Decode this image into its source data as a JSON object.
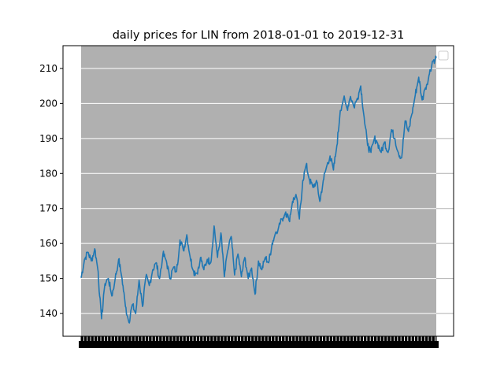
{
  "chart_data": {
    "type": "line",
    "title": "daily prices for LIN from 2018-01-01 to 2019-12-31",
    "xlabel": "",
    "ylabel": "",
    "x_range": [
      "2018-01-01",
      "2019-12-31"
    ],
    "ylim": [
      133.5,
      216.5
    ],
    "y_ticks": [
      140,
      150,
      160,
      170,
      180,
      190,
      200,
      210
    ],
    "grid": {
      "y": true,
      "x": false
    },
    "legend": {
      "placement": "upper-right",
      "entries": []
    },
    "colors": {
      "line": "#1f77b4",
      "plot_background": "#b0b0b0",
      "grid": "#ffffff"
    },
    "series": [
      {
        "keypoints": [
          [
            "2018-01-01",
            150.2
          ],
          [
            "2018-01-08",
            155.5
          ],
          [
            "2018-01-15",
            157.5
          ],
          [
            "2018-01-22",
            155.0
          ],
          [
            "2018-01-29",
            158.5
          ],
          [
            "2018-02-05",
            152.0
          ],
          [
            "2018-02-08",
            145.0
          ],
          [
            "2018-02-12",
            138.5
          ],
          [
            "2018-02-19",
            148.5
          ],
          [
            "2018-02-26",
            150.0
          ],
          [
            "2018-03-05",
            145.0
          ],
          [
            "2018-03-12",
            150.0
          ],
          [
            "2018-03-19",
            155.5
          ],
          [
            "2018-03-26",
            150.0
          ],
          [
            "2018-04-02",
            142.0
          ],
          [
            "2018-04-09",
            137.5
          ],
          [
            "2018-04-16",
            142.5
          ],
          [
            "2018-04-23",
            140.0
          ],
          [
            "2018-04-30",
            149.5
          ],
          [
            "2018-05-07",
            142.0
          ],
          [
            "2018-05-14",
            150.5
          ],
          [
            "2018-05-21",
            148.0
          ],
          [
            "2018-05-28",
            152.5
          ],
          [
            "2018-06-04",
            154.5
          ],
          [
            "2018-06-11",
            150.0
          ],
          [
            "2018-06-18",
            157.0
          ],
          [
            "2018-06-25",
            155.0
          ],
          [
            "2018-07-02",
            150.0
          ],
          [
            "2018-07-09",
            153.0
          ],
          [
            "2018-07-16",
            152.0
          ],
          [
            "2018-07-23",
            161.0
          ],
          [
            "2018-07-30",
            158.0
          ],
          [
            "2018-08-06",
            162.5
          ],
          [
            "2018-08-13",
            156.0
          ],
          [
            "2018-08-20",
            152.0
          ],
          [
            "2018-08-27",
            151.5
          ],
          [
            "2018-09-03",
            156.0
          ],
          [
            "2018-09-10",
            152.5
          ],
          [
            "2018-09-17",
            155.5
          ],
          [
            "2018-09-24",
            154.5
          ],
          [
            "2018-10-01",
            165.0
          ],
          [
            "2018-10-08",
            156.0
          ],
          [
            "2018-10-15",
            163.0
          ],
          [
            "2018-10-22",
            150.5
          ],
          [
            "2018-10-29",
            158.0
          ],
          [
            "2018-11-05",
            162.0
          ],
          [
            "2018-11-12",
            151.0
          ],
          [
            "2018-11-19",
            157.0
          ],
          [
            "2018-11-26",
            150.5
          ],
          [
            "2018-12-03",
            156.0
          ],
          [
            "2018-12-10",
            150.0
          ],
          [
            "2018-12-17",
            153.0
          ],
          [
            "2018-12-24",
            145.5
          ],
          [
            "2018-12-31",
            155.0
          ],
          [
            "2019-01-07",
            152.5
          ],
          [
            "2019-01-14",
            156.0
          ],
          [
            "2019-01-21",
            154.5
          ],
          [
            "2019-01-28",
            160.0
          ],
          [
            "2019-02-04",
            163.0
          ],
          [
            "2019-02-11",
            165.0
          ],
          [
            "2019-02-18",
            167.0
          ],
          [
            "2019-02-25",
            169.0
          ],
          [
            "2019-03-04",
            166.5
          ],
          [
            "2019-03-11",
            172.0
          ],
          [
            "2019-03-18",
            174.0
          ],
          [
            "2019-03-25",
            167.0
          ],
          [
            "2019-04-01",
            178.0
          ],
          [
            "2019-04-08",
            182.5
          ],
          [
            "2019-04-15",
            178.0
          ],
          [
            "2019-04-22",
            176.0
          ],
          [
            "2019-04-29",
            178.0
          ],
          [
            "2019-05-06",
            172.0
          ],
          [
            "2019-05-13",
            178.0
          ],
          [
            "2019-05-20",
            182.0
          ],
          [
            "2019-05-27",
            185.0
          ],
          [
            "2019-06-03",
            181.0
          ],
          [
            "2019-06-10",
            188.0
          ],
          [
            "2019-06-17",
            198.0
          ],
          [
            "2019-06-24",
            201.5
          ],
          [
            "2019-07-01",
            198.5
          ],
          [
            "2019-07-08",
            202.0
          ],
          [
            "2019-07-15",
            199.0
          ],
          [
            "2019-07-22",
            201.5
          ],
          [
            "2019-07-29",
            205.0
          ],
          [
            "2019-08-05",
            196.0
          ],
          [
            "2019-08-12",
            188.0
          ],
          [
            "2019-08-19",
            186.0
          ],
          [
            "2019-08-26",
            190.0
          ],
          [
            "2019-09-02",
            188.5
          ],
          [
            "2019-09-09",
            186.0
          ],
          [
            "2019-09-16",
            189.0
          ],
          [
            "2019-09-23",
            186.0
          ],
          [
            "2019-09-30",
            192.5
          ],
          [
            "2019-10-07",
            190.0
          ],
          [
            "2019-10-14",
            186.0
          ],
          [
            "2019-10-21",
            184.5
          ],
          [
            "2019-10-28",
            195.0
          ],
          [
            "2019-11-04",
            192.0
          ],
          [
            "2019-11-11",
            197.0
          ],
          [
            "2019-11-18",
            202.5
          ],
          [
            "2019-11-25",
            207.5
          ],
          [
            "2019-12-02",
            201.0
          ],
          [
            "2019-12-09",
            204.5
          ],
          [
            "2019-12-16",
            208.0
          ],
          [
            "2019-12-23",
            212.0
          ],
          [
            "2019-12-31",
            213.0
          ]
        ]
      }
    ]
  }
}
